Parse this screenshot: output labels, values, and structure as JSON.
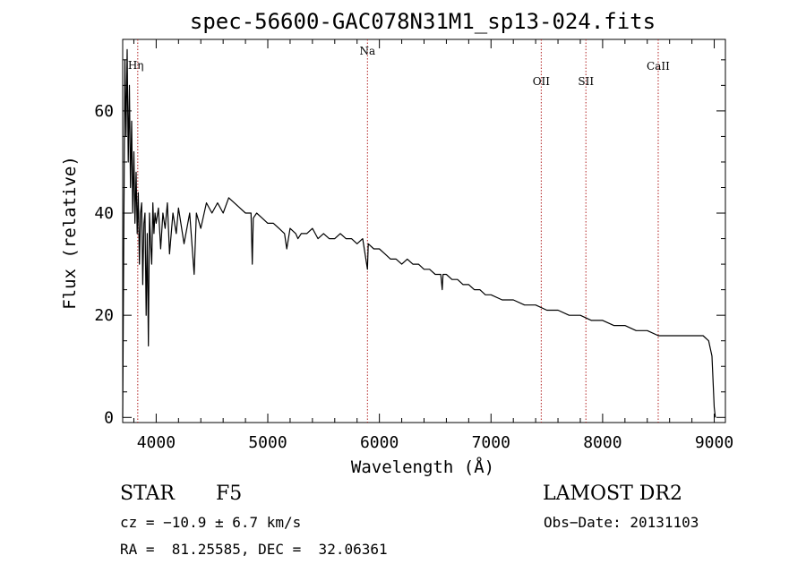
{
  "chart_data": {
    "type": "line",
    "title": "spec-56600-GAC078N31M1_sp13-024.fits",
    "xlabel": "Wavelength (Å)",
    "ylabel": "Flux (relative)",
    "xlim": [
      3700,
      9100
    ],
    "ylim": [
      -1,
      74
    ],
    "xticks": [
      4000,
      5000,
      6000,
      7000,
      8000,
      9000
    ],
    "xtick_labels": [
      "4000",
      "5000",
      "6000",
      "7000",
      "8000",
      "9000"
    ],
    "yticks": [
      0,
      20,
      40,
      60
    ],
    "ytick_labels": [
      "0",
      "20",
      "40",
      "60"
    ],
    "lines": [
      {
        "label": "Hη",
        "wavelength": 3835
      },
      {
        "label": "Na",
        "wavelength": 5893
      },
      {
        "label": "OII",
        "wavelength": 7450
      },
      {
        "label": "SII",
        "wavelength": 7850
      },
      {
        "label": "CaII",
        "wavelength": 8498
      }
    ],
    "series": [
      {
        "name": "flux",
        "color": "#000000",
        "x": [
          3700,
          3710,
          3720,
          3730,
          3740,
          3750,
          3760,
          3770,
          3780,
          3790,
          3800,
          3810,
          3820,
          3830,
          3840,
          3850,
          3860,
          3870,
          3880,
          3890,
          3900,
          3910,
          3920,
          3930,
          3940,
          3950,
          3960,
          3970,
          3980,
          3990,
          4000,
          4020,
          4040,
          4060,
          4080,
          4100,
          4120,
          4150,
          4180,
          4200,
          4250,
          4300,
          4340,
          4360,
          4400,
          4450,
          4500,
          4550,
          4600,
          4650,
          4700,
          4750,
          4800,
          4850,
          4861,
          4870,
          4900,
          4950,
          5000,
          5050,
          5100,
          5150,
          5170,
          5200,
          5250,
          5270,
          5300,
          5350,
          5400,
          5450,
          5500,
          5550,
          5600,
          5650,
          5700,
          5750,
          5800,
          5850,
          5893,
          5900,
          5950,
          6000,
          6050,
          6100,
          6150,
          6200,
          6250,
          6300,
          6350,
          6400,
          6450,
          6500,
          6550,
          6563,
          6570,
          6600,
          6650,
          6700,
          6750,
          6800,
          6850,
          6900,
          6950,
          7000,
          7100,
          7200,
          7300,
          7400,
          7500,
          7600,
          7700,
          7800,
          7900,
          8000,
          8100,
          8200,
          8300,
          8400,
          8500,
          8600,
          8700,
          8800,
          8850,
          8900,
          8950,
          8980,
          9000,
          9010
        ],
        "values": [
          0,
          35,
          70,
          55,
          72,
          50,
          65,
          45,
          58,
          40,
          52,
          38,
          48,
          36,
          44,
          30,
          40,
          42,
          26,
          38,
          40,
          20,
          36,
          14,
          40,
          34,
          30,
          42,
          36,
          40,
          38,
          41,
          33,
          40,
          37,
          42,
          32,
          40,
          36,
          41,
          34,
          40,
          28,
          40,
          37,
          42,
          40,
          42,
          40,
          43,
          42,
          41,
          40,
          40,
          30,
          39,
          40,
          39,
          38,
          38,
          37,
          36,
          33,
          37,
          36,
          35,
          36,
          36,
          37,
          35,
          36,
          35,
          35,
          36,
          35,
          35,
          34,
          35,
          29,
          34,
          33,
          33,
          32,
          31,
          31,
          30,
          31,
          30,
          30,
          29,
          29,
          28,
          28,
          25,
          28,
          28,
          27,
          27,
          26,
          26,
          25,
          25,
          24,
          24,
          23,
          23,
          22,
          22,
          21,
          21,
          20,
          20,
          19,
          19,
          18,
          18,
          17,
          17,
          16,
          16,
          16,
          16,
          16,
          16,
          15,
          12,
          2,
          0
        ]
      }
    ]
  },
  "info": {
    "object_class": "STAR",
    "subclass": "F5",
    "survey": "LAMOST DR2",
    "cz": "cz = −10.9 ± 6.7 km/s",
    "obs_date": "Obs−Date: 20131103",
    "coords": "RA =  81.25585, DEC =  32.06361"
  }
}
